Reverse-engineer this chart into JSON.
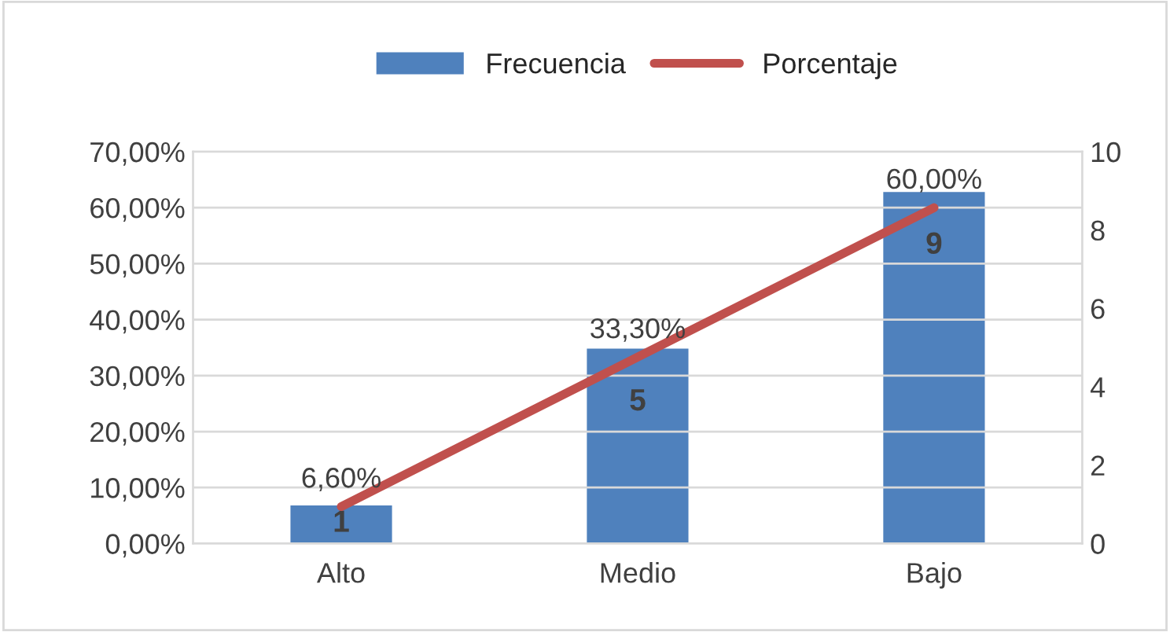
{
  "chart_data": {
    "type": "bar",
    "categories": [
      "Alto",
      "Medio",
      "Bajo"
    ],
    "series": [
      {
        "name": "Frecuencia",
        "axis": "y2",
        "color": "#4f81bd",
        "values": [
          1,
          5,
          9
        ],
        "value_labels": [
          "1",
          "5",
          "9"
        ]
      },
      {
        "name": "Porcentaje",
        "type": "line",
        "axis": "y",
        "color": "#c0504d",
        "values": [
          6.6,
          33.3,
          60.0
        ],
        "value_labels": [
          "6,60%",
          "33,30%",
          "60,00%"
        ]
      }
    ],
    "ylim": [
      0,
      70
    ],
    "yticks": [
      {
        "value": 0,
        "label": "0,00%"
      },
      {
        "value": 10,
        "label": "10,00%"
      },
      {
        "value": 20,
        "label": "20,00%"
      },
      {
        "value": 30,
        "label": "30,00%"
      },
      {
        "value": 40,
        "label": "40,00%"
      },
      {
        "value": 50,
        "label": "50,00%"
      },
      {
        "value": 60,
        "label": "60,00%"
      },
      {
        "value": 70,
        "label": "70,00%"
      }
    ],
    "y2lim": [
      0,
      10
    ],
    "y2ticks": [
      0,
      2,
      4,
      6,
      8,
      10
    ],
    "grid": "y",
    "legend": "top",
    "marker": "none",
    "line_style": "solid"
  }
}
